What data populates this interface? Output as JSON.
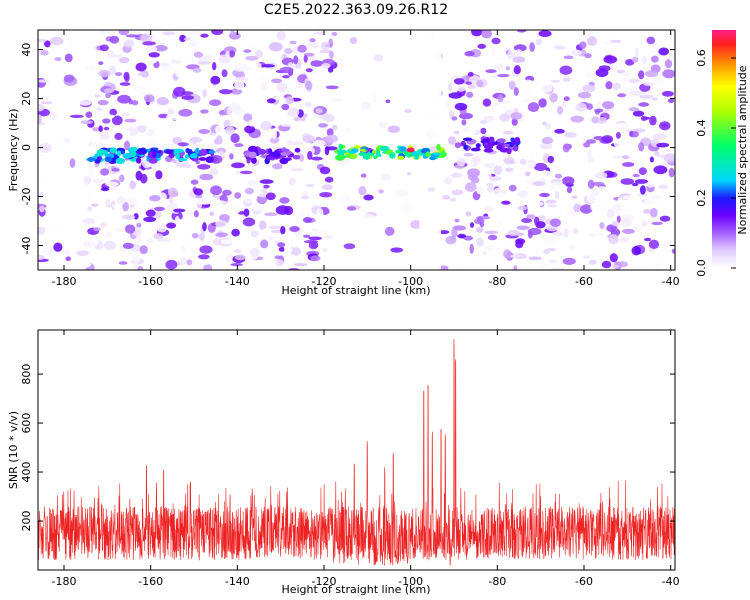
{
  "title": "C2E5.2022.363.09.26.R12",
  "colors": {
    "snr_line": "#ee2222",
    "spec_low": "#e8d8ff",
    "spec_mid": "#7a1fe8",
    "spec_peak": "#ff2020",
    "axes": "#000000"
  },
  "chart_data": [
    {
      "type": "heatmap",
      "name": "spectrogram",
      "xlabel": "Height of straight line (km)",
      "ylabel": "Frequency (Hz)",
      "xlim": [
        -186,
        -39
      ],
      "ylim": [
        -50,
        48
      ],
      "xticks": [
        -180,
        -160,
        -140,
        -120,
        -100,
        -80,
        -60,
        -40
      ],
      "xtick_labels": [
        "-180",
        "-160",
        "-140",
        "-120",
        "-100",
        "-80",
        "-60",
        "-40"
      ],
      "yticks": [
        -40,
        -20,
        0,
        20,
        40
      ],
      "ytick_labels": [
        "-40",
        "-20",
        "0",
        "20",
        "40"
      ],
      "colorbar": {
        "label": "Normalized spectral amplitude",
        "range": [
          0.0,
          0.68
        ],
        "ticks": [
          0.0,
          0.2,
          0.4,
          0.6
        ],
        "tick_labels": [
          "0.0",
          "0.2",
          "0.4",
          "0.6"
        ],
        "stops": [
          {
            "v": 0.0,
            "c": "#ffffff"
          },
          {
            "v": 0.05,
            "c": "#e2ccff"
          },
          {
            "v": 0.1,
            "c": "#a560ff"
          },
          {
            "v": 0.15,
            "c": "#6a00ff"
          },
          {
            "v": 0.2,
            "c": "#1a1aff"
          },
          {
            "v": 0.25,
            "c": "#00d8ff"
          },
          {
            "v": 0.35,
            "c": "#00ff66"
          },
          {
            "v": 0.45,
            "c": "#b4ff00"
          },
          {
            "v": 0.52,
            "c": "#ffff00"
          },
          {
            "v": 0.58,
            "c": "#ff9900"
          },
          {
            "v": 0.64,
            "c": "#ff2020"
          },
          {
            "v": 0.68,
            "c": "#ff1f88"
          }
        ]
      },
      "signal_segments": [
        {
          "x_start": -175,
          "x_end": -145,
          "freq": -3,
          "amp": 0.27
        },
        {
          "x_start": -138,
          "x_end": -126,
          "freq": -3,
          "amp": 0.18
        },
        {
          "x_start": -117,
          "x_end": -92,
          "freq": -2,
          "amp": 0.45
        },
        {
          "x_start": -88,
          "x_end": -75,
          "freq": 1,
          "amp": 0.2
        }
      ],
      "peak": {
        "x": -100,
        "freq": -1,
        "amp": 0.66
      },
      "sparse_bands": [
        [
          -118,
          -91
        ],
        [
          -184,
          -175
        ]
      ]
    },
    {
      "type": "line",
      "name": "snr",
      "xlabel": "Height of straight line (km)",
      "ylabel": "SNR (10 * v/v)",
      "xlim": [
        -186,
        -39
      ],
      "ylim": [
        0,
        980
      ],
      "xticks": [
        -180,
        -160,
        -140,
        -120,
        -100,
        -80,
        -60,
        -40
      ],
      "xtick_labels": [
        "-180",
        "-160",
        "-140",
        "-120",
        "-100",
        "-80",
        "-60",
        "-40"
      ],
      "yticks": [
        200,
        400,
        600,
        800
      ],
      "ytick_labels": [
        "200",
        "400",
        "600",
        "800"
      ],
      "baseline_band": [
        40,
        260
      ],
      "spikes": [
        {
          "x": -161,
          "value": 435
        },
        {
          "x": -157,
          "value": 415
        },
        {
          "x": -113,
          "value": 440
        },
        {
          "x": -110,
          "value": 545
        },
        {
          "x": -106,
          "value": 420
        },
        {
          "x": -104,
          "value": 485
        },
        {
          "x": -97,
          "value": 775
        },
        {
          "x": -96,
          "value": 770
        },
        {
          "x": -95,
          "value": 580
        },
        {
          "x": -93,
          "value": 610
        },
        {
          "x": -92,
          "value": 560
        },
        {
          "x": -90,
          "value": 975
        },
        {
          "x": -89.6,
          "value": 880
        },
        {
          "x": -42,
          "value": 360
        }
      ]
    }
  ]
}
